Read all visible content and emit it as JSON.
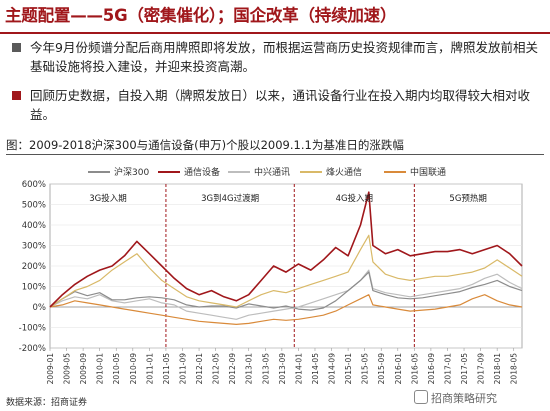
{
  "header": {
    "title": "主题配置——5G（密集催化）；国企改革（持续加速）"
  },
  "bullets": [
    {
      "text": "今年9月份频谱分配后商用牌照即将发放，而根据运营商历史投资规律而言，牌照发放前相关基础设施将投入建设，并迎来投资高潮。",
      "marker_color": "#5a5a5a"
    },
    {
      "text": "回顾历史数据，自投入期（牌照发放日）以来，通讯设备行业在投入期内均取得较大相对收益。",
      "marker_color": "#a0171b"
    }
  ],
  "figure_caption": "图：2009-2018沪深300与通信设备(申万)个股以2009.1.1为基准日的涨跌幅",
  "source": "数据来源：招商证券",
  "watermark": "招商策略研究",
  "chart_data": {
    "type": "line",
    "legend_placement": "top",
    "ylim": [
      -200,
      600
    ],
    "ytick_labels": [
      "600%",
      "500%",
      "400%",
      "300%",
      "200%",
      "100%",
      "0%",
      "-100%",
      "-200%"
    ],
    "ytick_values": [
      600,
      500,
      400,
      300,
      200,
      100,
      0,
      -100,
      -200
    ],
    "x_tick_labels": [
      "2009-01",
      "2009-05",
      "2009-09",
      "2010-01",
      "2010-05",
      "2010-09",
      "2011-01",
      "2011-05",
      "2011-09",
      "2012-01",
      "2012-05",
      "2012-09",
      "2013-01",
      "2013-05",
      "2013-09",
      "2014-01",
      "2014-05",
      "2014-09",
      "2015-01",
      "2015-05",
      "2015-09",
      "2016-01",
      "2016-05",
      "2016-09",
      "2017-01",
      "2017-05",
      "2017-09",
      "2018-01",
      "2018-05"
    ],
    "x_dates": [
      "2009-01",
      "2009-04",
      "2009-07",
      "2009-10",
      "2010-01",
      "2010-04",
      "2010-07",
      "2010-10",
      "2011-01",
      "2011-04",
      "2011-07",
      "2011-10",
      "2012-01",
      "2012-04",
      "2012-07",
      "2012-10",
      "2013-01",
      "2013-04",
      "2013-07",
      "2013-10",
      "2014-01",
      "2014-04",
      "2014-07",
      "2014-10",
      "2015-01",
      "2015-04",
      "2015-06",
      "2015-07",
      "2015-10",
      "2016-01",
      "2016-04",
      "2016-07",
      "2016-10",
      "2017-01",
      "2017-04",
      "2017-07",
      "2017-10",
      "2018-01",
      "2018-04",
      "2018-07"
    ],
    "phases": [
      {
        "label": "3G投入期",
        "start": "2009-01",
        "end": "2011-05"
      },
      {
        "label": "3G到4G过渡期",
        "start": "2011-05",
        "end": "2013-12"
      },
      {
        "label": "4G投入期",
        "start": "2013-12",
        "end": "2016-05"
      },
      {
        "label": "5G预热期",
        "start": "2016-05",
        "end": "2018-07"
      }
    ],
    "series": [
      {
        "name": "沪深300",
        "color": "#8c8c8c",
        "values": [
          0,
          40,
          75,
          55,
          70,
          35,
          35,
          45,
          50,
          45,
          35,
          10,
          0,
          5,
          5,
          -5,
          15,
          5,
          -5,
          5,
          -10,
          -15,
          -5,
          30,
          80,
          130,
          170,
          80,
          60,
          45,
          40,
          45,
          55,
          65,
          75,
          95,
          110,
          130,
          100,
          80
        ]
      },
      {
        "name": "通信设备",
        "color": "#a0171b",
        "values": [
          0,
          60,
          110,
          150,
          180,
          200,
          250,
          320,
          260,
          200,
          140,
          90,
          60,
          80,
          50,
          30,
          60,
          130,
          200,
          170,
          210,
          180,
          230,
          290,
          250,
          400,
          560,
          300,
          260,
          280,
          250,
          260,
          270,
          270,
          280,
          260,
          280,
          300,
          260,
          200
        ]
      },
      {
        "name": "中兴通讯",
        "color": "#bdbdbd",
        "values": [
          0,
          30,
          50,
          40,
          60,
          30,
          20,
          30,
          40,
          20,
          10,
          -20,
          -30,
          -40,
          -50,
          -60,
          -40,
          -30,
          -20,
          -10,
          0,
          20,
          40,
          60,
          80,
          130,
          180,
          90,
          70,
          60,
          50,
          60,
          70,
          80,
          90,
          110,
          140,
          160,
          120,
          90
        ]
      },
      {
        "name": "烽火通信",
        "color": "#d9b968",
        "values": [
          0,
          40,
          80,
          100,
          130,
          180,
          220,
          260,
          190,
          130,
          90,
          50,
          30,
          20,
          10,
          0,
          30,
          60,
          80,
          70,
          90,
          110,
          130,
          150,
          170,
          280,
          350,
          220,
          160,
          140,
          130,
          140,
          150,
          150,
          160,
          170,
          190,
          230,
          190,
          150
        ]
      },
      {
        "name": "中国联通",
        "color": "#d98a3a",
        "values": [
          0,
          10,
          30,
          20,
          10,
          0,
          -10,
          -20,
          -30,
          -40,
          -50,
          -60,
          -70,
          -75,
          -80,
          -85,
          -80,
          -70,
          -60,
          -65,
          -60,
          -50,
          -40,
          -20,
          10,
          40,
          60,
          10,
          0,
          -10,
          -20,
          -15,
          -10,
          0,
          10,
          40,
          60,
          30,
          10,
          0
        ]
      }
    ]
  }
}
